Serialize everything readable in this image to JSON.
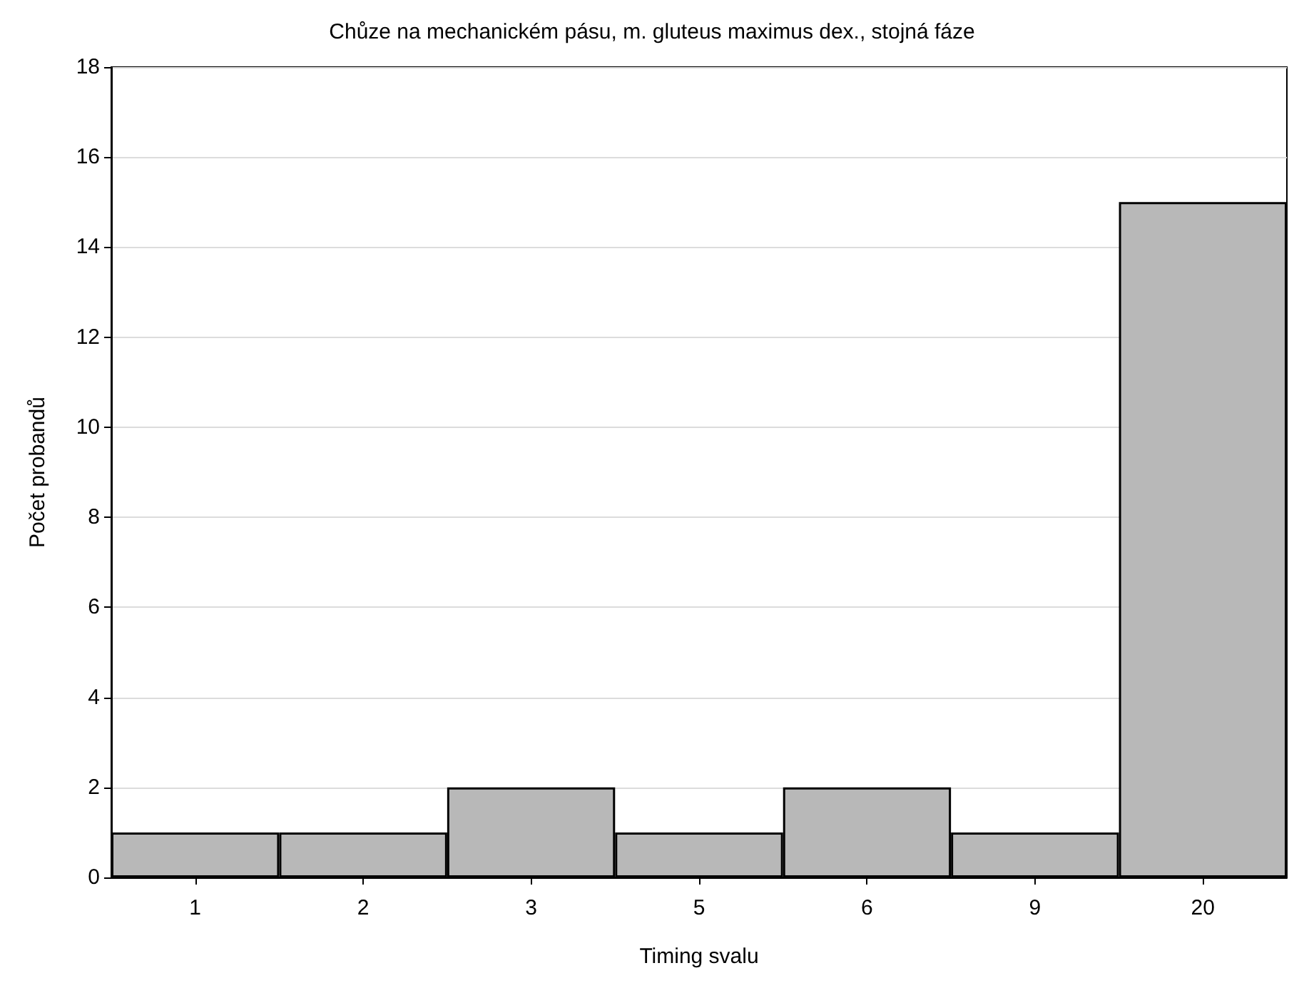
{
  "chart_data": {
    "type": "bar",
    "title": "Chůze na mechanickém pásu, m. gluteus maximus dex., stojná fáze",
    "xlabel": "Timing svalu",
    "ylabel": "Počet probandů",
    "categories": [
      "1",
      "2",
      "3",
      "5",
      "6",
      "9",
      "20"
    ],
    "values": [
      1,
      1,
      2,
      1,
      2,
      1,
      15
    ],
    "color": "#b8b8b8",
    "ylim": [
      0,
      18
    ],
    "yticks": [
      0,
      2,
      4,
      6,
      8,
      10,
      12,
      14,
      16,
      18
    ],
    "grid": "y"
  }
}
